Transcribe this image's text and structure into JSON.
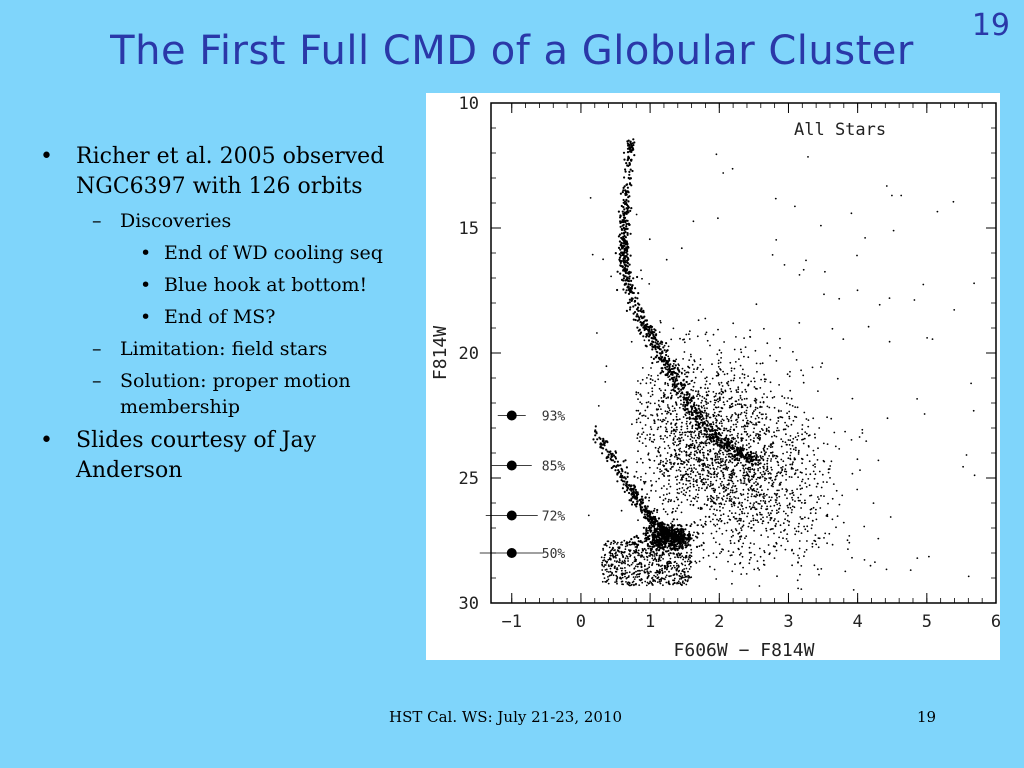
{
  "slide": {
    "number": "19",
    "title": "The First Full CMD of a Globular Cluster"
  },
  "bullets": {
    "b1": "Richer et al. 2005 observed NGC6397 with 126 orbits",
    "b1_sub1": "Discoveries",
    "b1_sub1_items": [
      "End of WD cooling seq",
      "Blue hook at bottom!",
      "End of MS?"
    ],
    "b1_sub2": "Limitation: field stars",
    "b1_sub3": "Solution: proper motion membership",
    "b2": "Slides courtesy of Jay Anderson"
  },
  "footer": {
    "text": "HST Cal. WS: July 21-23, 2010",
    "page": "19"
  },
  "chart_data": {
    "type": "scatter",
    "title": "",
    "panel_label": "All Stars",
    "xlabel": "F606W − F814W",
    "ylabel": "F814W",
    "xlim": [
      -1.3,
      6
    ],
    "ylim": [
      30,
      10
    ],
    "y_inverted": true,
    "x_ticks": [
      -1,
      0,
      1,
      2,
      3,
      4,
      5,
      6
    ],
    "x_tick_labels": [
      "−1",
      "0",
      "1",
      "2",
      "3",
      "4",
      "5",
      "6"
    ],
    "y_ticks": [
      10,
      15,
      20,
      25,
      30
    ],
    "y_tick_labels": [
      "10",
      "15",
      "20",
      "25",
      "30"
    ],
    "grid": false,
    "completeness_markers": [
      {
        "x": -1,
        "y": 22.5,
        "label": "93%"
      },
      {
        "x": -1,
        "y": 24.5,
        "label": "85%"
      },
      {
        "x": -1,
        "y": 26.5,
        "label": "72%"
      },
      {
        "x": -1,
        "y": 28.0,
        "label": "50%"
      }
    ],
    "sequences": {
      "main_sequence": [
        [
          0.72,
          11.5
        ],
        [
          0.68,
          13.0
        ],
        [
          0.64,
          14.5
        ],
        [
          0.62,
          15.5
        ],
        [
          0.64,
          16.5
        ],
        [
          0.72,
          17.5
        ],
        [
          0.85,
          18.5
        ],
        [
          1.0,
          19.3
        ],
        [
          1.18,
          20.2
        ],
        [
          1.35,
          21.0
        ],
        [
          1.55,
          22.0
        ],
        [
          1.78,
          22.9
        ],
        [
          2.0,
          23.5
        ],
        [
          2.3,
          24.0
        ],
        [
          2.5,
          24.4
        ]
      ],
      "white_dwarf_sequence": [
        [
          0.1,
          22.9
        ],
        [
          0.3,
          23.5
        ],
        [
          0.5,
          24.4
        ],
        [
          0.7,
          25.3
        ],
        [
          0.85,
          26.0
        ],
        [
          1.0,
          26.6
        ],
        [
          1.15,
          27.0
        ],
        [
          1.3,
          27.3
        ],
        [
          1.5,
          27.4
        ]
      ],
      "wd_clump_center": [
        1.25,
        27.4
      ],
      "field_star_region": {
        "x_range": [
          0.8,
          4.6
        ],
        "y_range": [
          18.5,
          29.5
        ],
        "center": [
          2.0,
          24.0
        ]
      },
      "faint_cloud": {
        "x_range": [
          0.3,
          1.6
        ],
        "y_range": [
          27.5,
          29.3
        ]
      }
    }
  }
}
